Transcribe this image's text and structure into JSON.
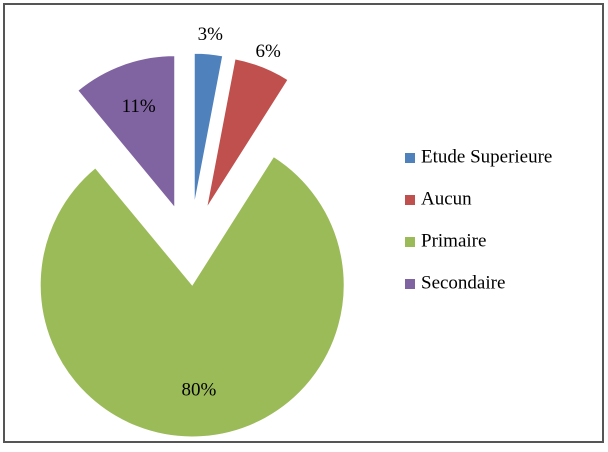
{
  "chart_data": {
    "type": "pie",
    "categories": [
      "Etude Superieure",
      "Aucun",
      "Primaire",
      "Secondaire"
    ],
    "values": [
      3,
      6,
      80,
      11
    ],
    "value_labels": [
      "3%",
      "6%",
      "80%",
      "11%"
    ],
    "colors": [
      "#4f81bd",
      "#c0504d",
      "#9bbb59",
      "#8064a2"
    ],
    "legend": "right"
  }
}
